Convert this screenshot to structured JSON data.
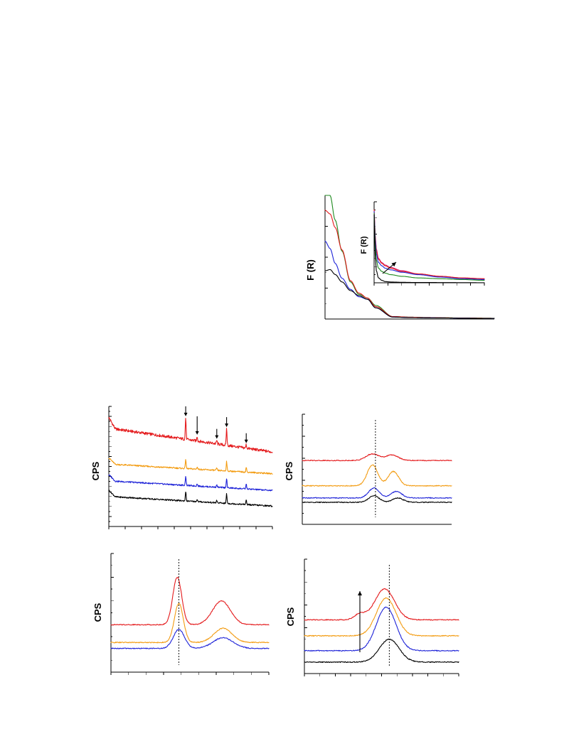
{
  "colors": {
    "red": "#e41a1c",
    "orange": "#f39c12",
    "blue": "#1f24d8",
    "black": "#000000",
    "green": "#1f8a1f",
    "magenta": "#d6267d"
  },
  "chart_data": [
    {
      "id": "fr-main",
      "type": "line",
      "title": "",
      "ylabel": "F (R)",
      "xlabel": "",
      "x": [
        0,
        3,
        6,
        10,
        15,
        20,
        25,
        30,
        40,
        50,
        60,
        70,
        80,
        100
      ],
      "xlim": [
        0,
        100
      ],
      "ylim": [
        0,
        100
      ],
      "grid": false,
      "series": [
        {
          "color": "green",
          "values": [
            100,
            100,
            80,
            55,
            30,
            20,
            17,
            11,
            2,
            1.5,
            1.2,
            1,
            0.8,
            0.6
          ]
        },
        {
          "color": "red",
          "values": [
            88,
            85,
            74,
            56,
            31,
            21,
            17,
            10,
            2,
            1.5,
            1.2,
            1,
            0.8,
            0.6
          ]
        },
        {
          "color": "blue",
          "values": [
            63,
            57,
            45,
            33,
            24,
            18,
            16,
            9,
            1.6,
            1.2,
            1,
            0.9,
            0.7,
            0.5
          ]
        },
        {
          "color": "black",
          "values": [
            39,
            40,
            36,
            30,
            23,
            19,
            16,
            9,
            1.6,
            1.2,
            1,
            0.9,
            0.7,
            0.5
          ]
        }
      ]
    },
    {
      "id": "fr-inset",
      "type": "line",
      "title": "",
      "ylabel": "F (R)",
      "xlabel": "",
      "x": [
        0,
        1,
        2,
        4,
        7,
        10,
        15,
        25,
        40,
        60,
        80,
        100
      ],
      "xlim": [
        0,
        100
      ],
      "ylim": [
        0,
        100
      ],
      "grid": false,
      "annotations": [
        "arrow-up-right"
      ],
      "series": [
        {
          "color": "magenta",
          "values": [
            90,
            60,
            42,
            30,
            25,
            22,
            19,
            15,
            11,
            8,
            6,
            5
          ]
        },
        {
          "color": "red",
          "values": [
            90,
            58,
            40,
            29,
            24,
            21,
            18,
            14,
            11,
            8,
            6,
            5
          ]
        },
        {
          "color": "blue",
          "values": [
            88,
            55,
            36,
            25,
            21,
            18,
            16,
            13,
            10,
            7,
            5,
            4
          ]
        },
        {
          "color": "green",
          "values": [
            86,
            48,
            28,
            18,
            14,
            12,
            10,
            8,
            6,
            5,
            4,
            3
          ]
        },
        {
          "color": "black",
          "values": [
            84,
            35,
            15,
            6,
            3,
            1.5,
            1,
            0.6,
            0.4,
            0.3,
            0.2,
            0.1
          ]
        }
      ]
    },
    {
      "id": "xrd-wide",
      "type": "line",
      "title": "",
      "ylabel": "CPS",
      "xlabel": "",
      "x": [
        0,
        100
      ],
      "xlim": [
        0,
        100
      ],
      "ylim": [
        0,
        100
      ],
      "grid": false,
      "peaks": [
        47,
        54,
        66,
        72,
        84
      ],
      "marked_peaks": [
        47,
        54,
        66,
        72,
        84
      ],
      "series": [
        {
          "color": "red",
          "offset": 62,
          "drop": 20,
          "peak_heights": [
            18,
            4,
            3,
            14,
            3
          ]
        },
        {
          "color": "orange",
          "offset": 44,
          "drop": 8,
          "peak_heights": [
            8,
            2,
            2,
            8,
            4
          ]
        },
        {
          "color": "blue",
          "offset": 30,
          "drop": 8,
          "peak_heights": [
            8,
            2,
            2,
            8,
            4
          ]
        },
        {
          "color": "black",
          "offset": 17,
          "drop": 8,
          "peak_heights": [
            8,
            2,
            2,
            8,
            4
          ]
        }
      ]
    },
    {
      "id": "xrd-zoom-a",
      "type": "line",
      "title": "",
      "ylabel": "CPS",
      "xlabel": "",
      "xlim": [
        0,
        100
      ],
      "ylim": [
        0,
        100
      ],
      "grid": false,
      "reference_line_x": 49,
      "series": [
        {
          "color": "red",
          "baseline": 58,
          "peaks": [
            [
              47,
              6,
              6
            ],
            [
              60,
              5,
              6
            ]
          ]
        },
        {
          "color": "orange",
          "baseline": 35,
          "peaks": [
            [
              47,
              19,
              5
            ],
            [
              61,
              13,
              5
            ]
          ]
        },
        {
          "color": "blue",
          "baseline": 24,
          "peaks": [
            [
              48,
              9,
              5
            ],
            [
              63,
              6,
              5
            ]
          ]
        },
        {
          "color": "black",
          "baseline": 20,
          "peaks": [
            [
              48,
              6,
              5
            ],
            [
              64,
              4,
              5
            ]
          ]
        }
      ]
    },
    {
      "id": "xrd-zoom-b",
      "type": "line",
      "title": "",
      "ylabel": "CPS",
      "xlabel": "",
      "xlim": [
        0,
        100
      ],
      "ylim": [
        0,
        100
      ],
      "grid": false,
      "reference_line_x": 43,
      "series": [
        {
          "color": "red",
          "baseline": 40,
          "peaks": [
            [
              42,
              40,
              4
            ],
            [
              70,
              20,
              8
            ]
          ]
        },
        {
          "color": "orange",
          "baseline": 25,
          "peaks": [
            [
              43,
              33,
              4
            ],
            [
              71,
              12,
              8
            ]
          ]
        },
        {
          "color": "blue",
          "baseline": 20,
          "peaks": [
            [
              43,
              16,
              5
            ],
            [
              71,
              9,
              9
            ]
          ]
        }
      ]
    },
    {
      "id": "xrd-zoom-c",
      "type": "line",
      "title": "",
      "ylabel": "CPS",
      "xlabel": "",
      "xlim": [
        0,
        100
      ],
      "ylim": [
        0,
        100
      ],
      "grid": false,
      "reference_line_x": 55,
      "annotations": [
        "arrow-up"
      ],
      "series": [
        {
          "color": "red",
          "baseline": 47,
          "peaks": [
            [
              52,
              27,
              9
            ],
            [
              36,
              5,
              5
            ]
          ]
        },
        {
          "color": "orange",
          "baseline": 33,
          "peaks": [
            [
              53,
              33,
              9
            ]
          ]
        },
        {
          "color": "blue",
          "baseline": 20,
          "peaks": [
            [
              53,
              38,
              9
            ]
          ]
        },
        {
          "color": "black",
          "baseline": 10,
          "peaks": [
            [
              55,
              20,
              9
            ]
          ]
        }
      ]
    }
  ]
}
